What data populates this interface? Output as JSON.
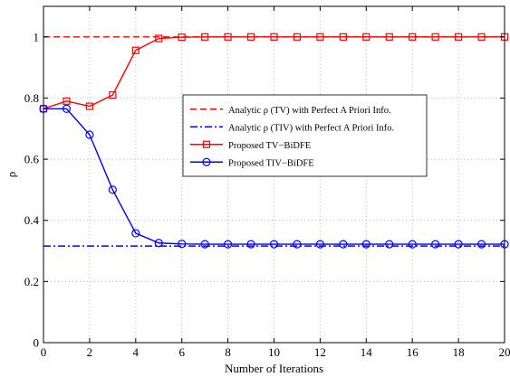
{
  "chart_data": {
    "type": "line",
    "xlabel": "Number of Iterations",
    "ylabel": "ρ",
    "xlim": [
      0,
      20
    ],
    "ylim": [
      0,
      1.1
    ],
    "xticks": [
      0,
      2,
      4,
      6,
      8,
      10,
      12,
      14,
      16,
      18,
      20
    ],
    "yticks": [
      0,
      0.2,
      0.4,
      0.6,
      0.8,
      1
    ],
    "ytick_labels": [
      "0",
      "0.2",
      "0.4",
      "0.6",
      "0.8",
      "1"
    ],
    "grid": true,
    "legend_position": "center-right",
    "series": [
      {
        "name": "Analytic ρ (TV) with Perfect A Priori Info.",
        "color": "#ff0000",
        "line_style": "dashed",
        "marker": "none",
        "x": [
          0,
          20
        ],
        "y": [
          1.0,
          1.0
        ]
      },
      {
        "name": "Analytic ρ (TIV) with Perfect A Priori Info.",
        "color": "#0000ff",
        "line_style": "dash-dot",
        "marker": "none",
        "x": [
          0,
          20
        ],
        "y": [
          0.316,
          0.316
        ]
      },
      {
        "name": "Proposed TV−BiDFE",
        "color": "#ff0000",
        "line_style": "solid",
        "marker": "square",
        "x": [
          0,
          1,
          2,
          3,
          4,
          5,
          6,
          7,
          8,
          9,
          10,
          11,
          12,
          13,
          14,
          15,
          16,
          17,
          18,
          19,
          20
        ],
        "y": [
          0.765,
          0.79,
          0.773,
          0.81,
          0.956,
          0.995,
          0.999,
          1.0,
          1.0,
          1.0,
          1.0,
          1.0,
          1.0,
          1.0,
          1.0,
          1.0,
          1.0,
          1.0,
          1.0,
          1.0,
          1.0
        ]
      },
      {
        "name": "Proposed TIV−BiDFE",
        "color": "#0000ff",
        "line_style": "solid",
        "marker": "circle",
        "x": [
          0,
          1,
          2,
          3,
          4,
          5,
          6,
          7,
          8,
          9,
          10,
          11,
          12,
          13,
          14,
          15,
          16,
          17,
          18,
          19,
          20
        ],
        "y": [
          0.765,
          0.765,
          0.68,
          0.5,
          0.358,
          0.326,
          0.323,
          0.322,
          0.322,
          0.322,
          0.322,
          0.322,
          0.322,
          0.322,
          0.322,
          0.322,
          0.322,
          0.322,
          0.322,
          0.322,
          0.322
        ]
      }
    ]
  }
}
